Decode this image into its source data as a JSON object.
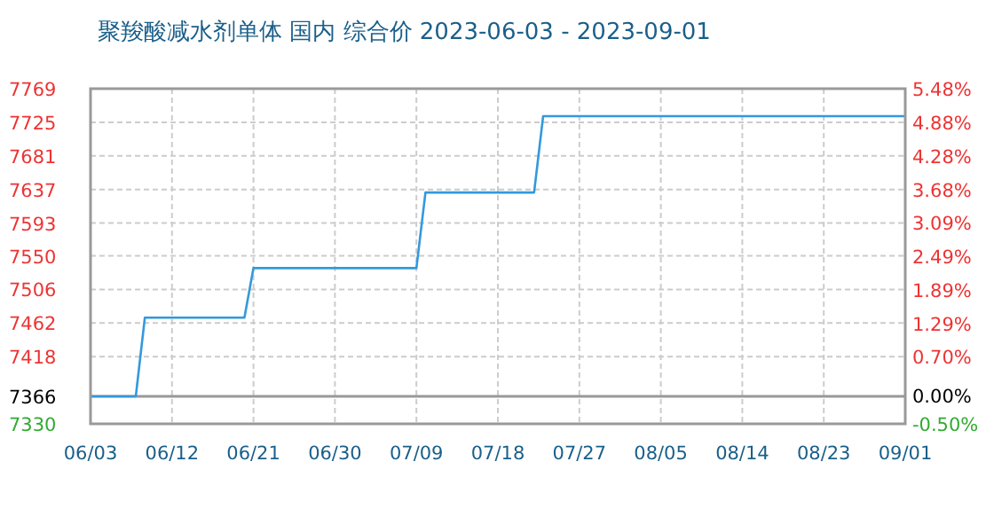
{
  "chart_data": {
    "type": "line",
    "title": "聚羧酸减水剂单体 国内 综合价 2023-06-03 - 2023-09-01",
    "x": [
      "2023-06-03",
      "2023-06-08",
      "2023-06-09",
      "2023-06-20",
      "2023-06-21",
      "2023-07-09",
      "2023-07-10",
      "2023-07-22",
      "2023-07-23",
      "2023-09-01"
    ],
    "series": [
      {
        "color": "#3399dd",
        "values": [
          7366,
          7366,
          7469,
          7469,
          7534,
          7534,
          7633,
          7633,
          7733,
          7733
        ]
      }
    ],
    "xlim": [
      "2023-06-03",
      "2023-09-01"
    ],
    "xticks": [
      {
        "value": "2023-06-03",
        "label": "06/03"
      },
      {
        "value": "2023-06-12",
        "label": "06/12"
      },
      {
        "value": "2023-06-21",
        "label": "06/21"
      },
      {
        "value": "2023-06-30",
        "label": "06/30"
      },
      {
        "value": "2023-07-09",
        "label": "07/09"
      },
      {
        "value": "2023-07-18",
        "label": "07/18"
      },
      {
        "value": "2023-07-27",
        "label": "07/27"
      },
      {
        "value": "2023-08-05",
        "label": "08/05"
      },
      {
        "value": "2023-08-14",
        "label": "08/14"
      },
      {
        "value": "2023-08-23",
        "label": "08/23"
      },
      {
        "value": "2023-09-01",
        "label": "09/01"
      }
    ],
    "ylim": [
      7330,
      7769
    ],
    "yticks": [
      7330,
      7366,
      7418,
      7462,
      7506,
      7550,
      7593,
      7637,
      7681,
      7725,
      7769
    ],
    "y2lim": [
      -0.5,
      5.48
    ],
    "y2ticks": [
      {
        "value": -0.5,
        "label": "-0.50%"
      },
      {
        "value": 0,
        "label": "0.00%"
      },
      {
        "value": 0.7,
        "label": "0.70%"
      },
      {
        "value": 1.29,
        "label": "1.29%"
      },
      {
        "value": 1.89,
        "label": "1.89%"
      },
      {
        "value": 2.49,
        "label": "2.49%"
      },
      {
        "value": 3.09,
        "label": "3.09%"
      },
      {
        "value": 3.68,
        "label": "3.68%"
      },
      {
        "value": 4.28,
        "label": "4.28%"
      },
      {
        "value": 4.88,
        "label": "4.88%"
      },
      {
        "value": 5.48,
        "label": "5.48%"
      }
    ],
    "ref_lines": [
      {
        "axis": "y",
        "value": 7366,
        "color": "#999999"
      }
    ],
    "grid": true,
    "marker": "none",
    "line_style": "solid"
  }
}
